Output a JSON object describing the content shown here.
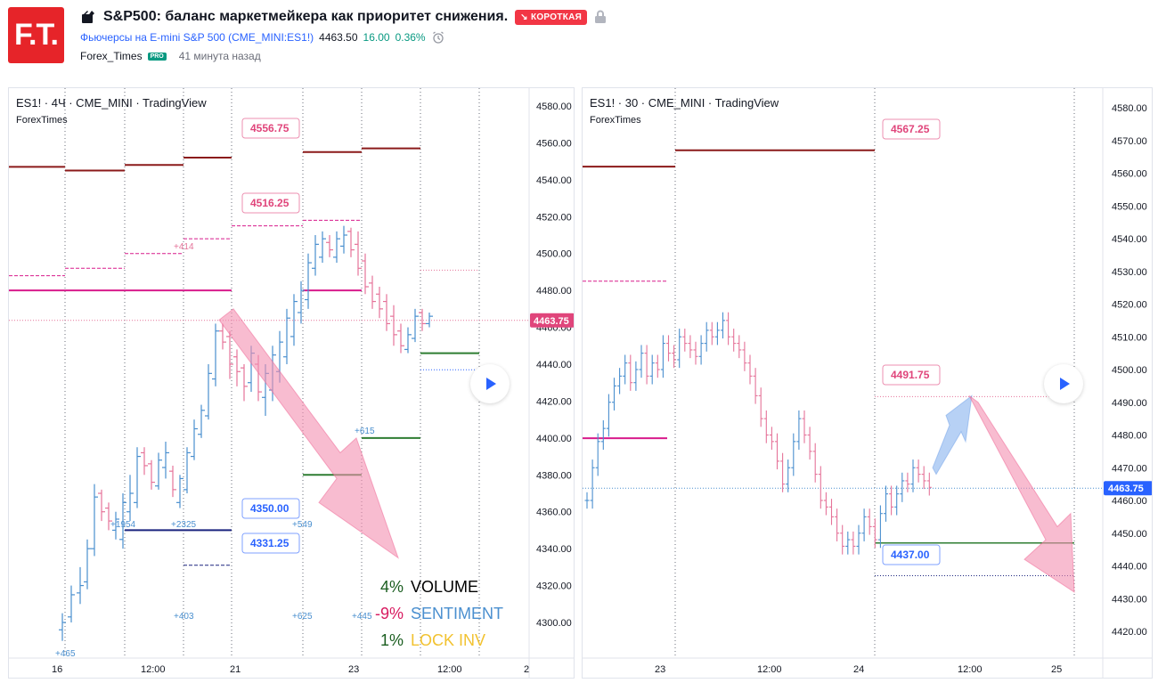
{
  "header": {
    "logo_text": "F.T.",
    "title": "S&P500: баланс маркетмейкера как приоритет снижения.",
    "badge": "КОРОТКАЯ",
    "symbol_name": "Фьючерсы на E-mini S&P 500",
    "symbol_code": "(CME_MINI:ES1!)",
    "price": "4463.50",
    "change": "16.00",
    "change_pct": "0.36%",
    "author": "Forex_Times",
    "pro": "PRO",
    "time_ago": "41 минута назад"
  },
  "left_chart": {
    "label": "ES1! · 4Ч · CME_MINI · TradingView",
    "author": "ForexTimes",
    "price_axis": [
      "4580.00",
      "4560.00",
      "4540.00",
      "4520.00",
      "4500.00",
      "4480.00",
      "4460.00",
      "4440.00",
      "4420.00",
      "4400.00",
      "4380.00",
      "4360.00",
      "4340.00",
      "4320.00",
      "4300.00"
    ],
    "time_axis": [
      "16",
      "12:00",
      "21",
      "23",
      "12:00",
      "2"
    ],
    "current_price": "4463.75",
    "levels": [
      "4556.75",
      "4516.25",
      "4350.00",
      "4331.25"
    ],
    "small_labels": [
      "+414",
      "+1954",
      "+2325",
      "+615",
      "+549",
      "+403",
      "+625",
      "+445",
      "+465"
    ],
    "legend": [
      {
        "pct": "4%",
        "label": "VOLUME",
        "pct_color": "#1b5e20",
        "label_color": "#000000"
      },
      {
        "pct": "-9%",
        "label": "SENTIMENT",
        "pct_color": "#d81b60",
        "label_color": "#4a8fcf"
      },
      {
        "pct": "1%",
        "label": "LOCK INV",
        "pct_color": "#1b5e20",
        "label_color": "#f2c230"
      }
    ]
  },
  "right_chart": {
    "label": "ES1! · 30 · CME_MINI · TradingView",
    "author": "ForexTimes",
    "price_axis": [
      "4580.00",
      "4570.00",
      "4560.00",
      "4550.00",
      "4540.00",
      "4530.00",
      "4520.00",
      "4510.00",
      "4500.00",
      "4490.00",
      "4480.00",
      "4470.00",
      "4460.00",
      "4450.00",
      "4440.00",
      "4430.00",
      "4420.00"
    ],
    "time_axis": [
      "23",
      "12:00",
      "24",
      "12:00",
      "25"
    ],
    "current_price": "4463.75",
    "levels": [
      "4567.25",
      "4491.75",
      "4437.00"
    ]
  },
  "colors": {
    "up": "#4a8fcf",
    "down": "#e57399",
    "level_dark": "#8b1a1a",
    "level_magenta": "#d81b8c",
    "level_green": "#2e7d32",
    "level_blue": "#1a237e",
    "arrow_pink": "#f48fb1",
    "arrow_blue": "#90b8f0"
  }
}
